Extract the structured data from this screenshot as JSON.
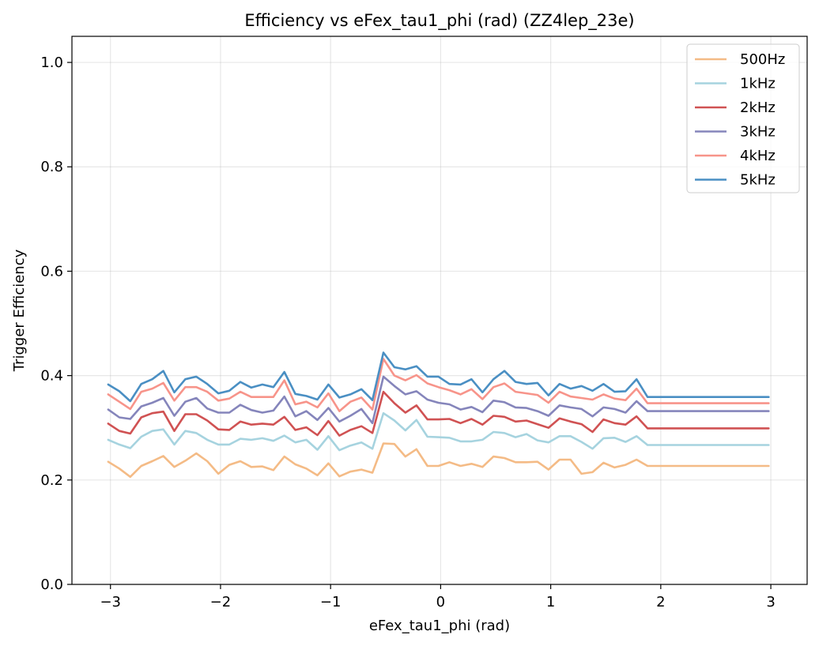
{
  "chart_data": {
    "type": "line",
    "title": "Efficiency vs eFex_tau1_phi (rad) (ZZ4lep_23e)",
    "xlabel": "eFex_tau1_phi (rad)",
    "ylabel": "Trigger Efficiency",
    "xlim": [
      -3.35,
      3.33
    ],
    "ylim": [
      0.0,
      1.05
    ],
    "x_ticks": [
      -3,
      -2,
      -1,
      0,
      1,
      2,
      3
    ],
    "x_tick_labels": [
      "−3",
      "−2",
      "−1",
      "0",
      "1",
      "2",
      "3"
    ],
    "y_ticks": [
      0.0,
      0.2,
      0.4,
      0.6,
      0.8,
      1.0
    ],
    "y_tick_labels": [
      "0.0",
      "0.2",
      "0.4",
      "0.6",
      "0.8",
      "1.0"
    ],
    "grid": true,
    "legend_position": "top-right",
    "x": [
      -3.02,
      -2.92,
      -2.82,
      -2.72,
      -2.62,
      -2.52,
      -2.42,
      -2.32,
      -2.22,
      -2.12,
      -2.02,
      -1.92,
      -1.82,
      -1.72,
      -1.62,
      -1.52,
      -1.42,
      -1.32,
      -1.22,
      -1.12,
      -1.02,
      -0.92,
      -0.82,
      -0.72,
      -0.62,
      -0.52,
      -0.42,
      -0.32,
      -0.22,
      -0.12,
      -0.02,
      0.08,
      0.18,
      0.28,
      0.38,
      0.48,
      0.58,
      0.68,
      0.78,
      0.88,
      0.98,
      1.08,
      1.18,
      1.28,
      1.38,
      1.48,
      1.58,
      1.68,
      1.78,
      1.88,
      1.98,
      2.08,
      2.18,
      2.28,
      2.38,
      2.48,
      2.58,
      2.68,
      2.78,
      2.88,
      2.98
    ],
    "series": [
      {
        "name": "500Hz",
        "color": "#f4bb86",
        "values": [
          0.235,
          0.222,
          0.206,
          0.227,
          0.236,
          0.246,
          0.225,
          0.237,
          0.251,
          0.236,
          0.212,
          0.229,
          0.236,
          0.225,
          0.226,
          0.219,
          0.245,
          0.23,
          0.222,
          0.209,
          0.232,
          0.207,
          0.216,
          0.22,
          0.214,
          0.27,
          0.269,
          0.245,
          0.259,
          0.227,
          0.227,
          0.234,
          0.227,
          0.231,
          0.225,
          0.245,
          0.242,
          0.234,
          0.234,
          0.235,
          0.22,
          0.239,
          0.239,
          0.212,
          0.215,
          0.233,
          0.224,
          0.229,
          0.239,
          0.227,
          0.227,
          0.227,
          0.227,
          0.227,
          0.227,
          0.227,
          0.227,
          0.227,
          0.227,
          0.227,
          0.227
        ]
      },
      {
        "name": "1kHz",
        "color": "#a6d3df",
        "values": [
          0.277,
          0.268,
          0.261,
          0.283,
          0.294,
          0.297,
          0.268,
          0.294,
          0.29,
          0.277,
          0.268,
          0.268,
          0.279,
          0.277,
          0.28,
          0.275,
          0.285,
          0.272,
          0.277,
          0.258,
          0.284,
          0.257,
          0.266,
          0.272,
          0.26,
          0.328,
          0.314,
          0.295,
          0.315,
          0.283,
          0.282,
          0.281,
          0.274,
          0.274,
          0.277,
          0.292,
          0.29,
          0.282,
          0.288,
          0.276,
          0.272,
          0.284,
          0.284,
          0.273,
          0.26,
          0.28,
          0.281,
          0.273,
          0.284,
          0.267,
          0.267,
          0.267,
          0.267,
          0.267,
          0.267,
          0.267,
          0.267,
          0.267,
          0.267,
          0.267,
          0.267
        ]
      },
      {
        "name": "2kHz",
        "color": "#d05253",
        "values": [
          0.308,
          0.294,
          0.289,
          0.32,
          0.328,
          0.331,
          0.294,
          0.326,
          0.326,
          0.314,
          0.297,
          0.296,
          0.312,
          0.306,
          0.308,
          0.306,
          0.321,
          0.296,
          0.301,
          0.286,
          0.313,
          0.285,
          0.296,
          0.303,
          0.29,
          0.369,
          0.347,
          0.329,
          0.343,
          0.316,
          0.316,
          0.317,
          0.309,
          0.317,
          0.306,
          0.323,
          0.321,
          0.312,
          0.314,
          0.307,
          0.3,
          0.318,
          0.312,
          0.307,
          0.292,
          0.316,
          0.309,
          0.306,
          0.322,
          0.299,
          0.299,
          0.299,
          0.299,
          0.299,
          0.299,
          0.299,
          0.299,
          0.299,
          0.299,
          0.299,
          0.299
        ]
      },
      {
        "name": "3kHz",
        "color": "#8585bb",
        "values": [
          0.335,
          0.32,
          0.317,
          0.341,
          0.348,
          0.357,
          0.323,
          0.35,
          0.357,
          0.337,
          0.329,
          0.329,
          0.344,
          0.334,
          0.329,
          0.333,
          0.36,
          0.322,
          0.332,
          0.315,
          0.338,
          0.312,
          0.323,
          0.336,
          0.309,
          0.398,
          0.38,
          0.364,
          0.37,
          0.354,
          0.348,
          0.345,
          0.335,
          0.34,
          0.33,
          0.352,
          0.349,
          0.339,
          0.338,
          0.332,
          0.323,
          0.343,
          0.339,
          0.336,
          0.322,
          0.339,
          0.336,
          0.329,
          0.351,
          0.332,
          0.332,
          0.332,
          0.332,
          0.332,
          0.332,
          0.332,
          0.332,
          0.332,
          0.332,
          0.332,
          0.332
        ]
      },
      {
        "name": "4kHz",
        "color": "#f7948a",
        "values": [
          0.364,
          0.35,
          0.336,
          0.369,
          0.375,
          0.386,
          0.352,
          0.378,
          0.378,
          0.369,
          0.352,
          0.356,
          0.369,
          0.359,
          0.359,
          0.359,
          0.391,
          0.345,
          0.35,
          0.339,
          0.366,
          0.332,
          0.35,
          0.358,
          0.335,
          0.432,
          0.4,
          0.391,
          0.401,
          0.385,
          0.378,
          0.372,
          0.364,
          0.374,
          0.355,
          0.378,
          0.385,
          0.369,
          0.366,
          0.363,
          0.348,
          0.369,
          0.36,
          0.357,
          0.354,
          0.364,
          0.356,
          0.353,
          0.375,
          0.347,
          0.347,
          0.347,
          0.347,
          0.347,
          0.347,
          0.347,
          0.347,
          0.347,
          0.347,
          0.347,
          0.347
        ]
      },
      {
        "name": "5kHz",
        "color": "#4a8fc3",
        "values": [
          0.383,
          0.37,
          0.351,
          0.384,
          0.393,
          0.409,
          0.368,
          0.393,
          0.398,
          0.384,
          0.366,
          0.371,
          0.388,
          0.377,
          0.383,
          0.378,
          0.407,
          0.365,
          0.361,
          0.354,
          0.383,
          0.358,
          0.364,
          0.374,
          0.353,
          0.444,
          0.416,
          0.412,
          0.418,
          0.398,
          0.398,
          0.384,
          0.383,
          0.393,
          0.368,
          0.393,
          0.409,
          0.388,
          0.384,
          0.386,
          0.362,
          0.384,
          0.375,
          0.38,
          0.371,
          0.384,
          0.369,
          0.37,
          0.393,
          0.359,
          0.359,
          0.359,
          0.359,
          0.359,
          0.359,
          0.359,
          0.359,
          0.359,
          0.359,
          0.359,
          0.359
        ]
      }
    ]
  }
}
